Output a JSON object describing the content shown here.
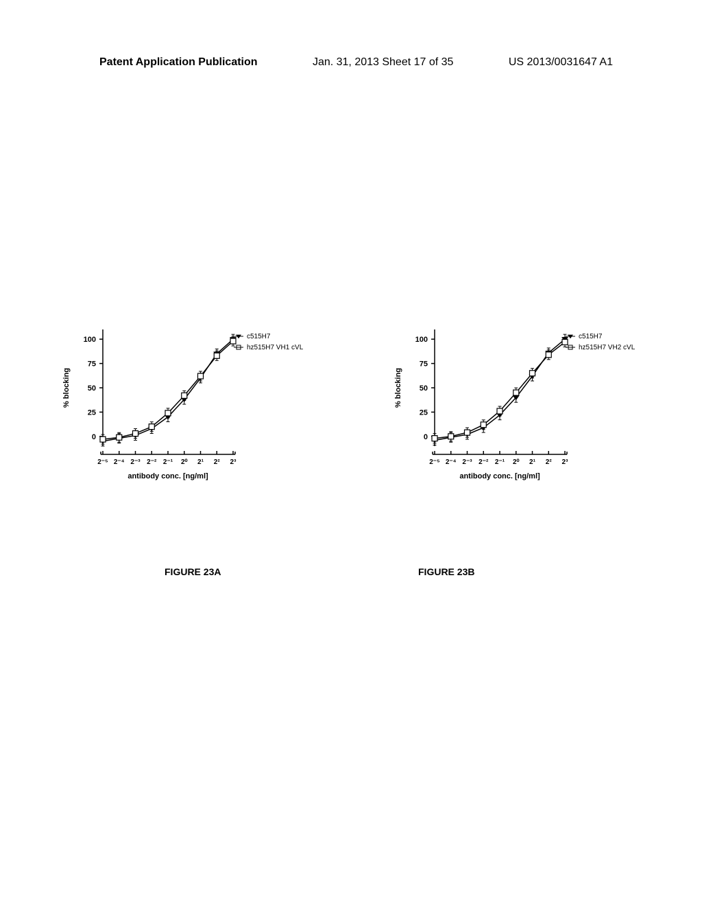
{
  "header": {
    "left": "Patent Application Publication",
    "center": "Jan. 31, 2013  Sheet 17 of 35",
    "right": "US 2013/0031647 A1"
  },
  "chartA": {
    "type": "line",
    "ylabel": "% blocking",
    "xlabel": "antibody conc. [ng/ml]",
    "ylim": [
      -10,
      110
    ],
    "yticks": [
      0,
      25,
      50,
      75,
      100
    ],
    "xtick_labels": [
      "2⁻⁵",
      "2⁻⁴",
      "2⁻³",
      "2⁻²",
      "2⁻¹",
      "2⁰",
      "2¹",
      "2²",
      "2³"
    ],
    "series": [
      {
        "name": "c515H7",
        "marker": "filled-down-triangle",
        "color": "#000000",
        "data": [
          -5,
          -2,
          1,
          8,
          20,
          38,
          60,
          85,
          100
        ]
      },
      {
        "name": "hz515H7 VH1 cVL",
        "marker": "open-square",
        "color": "#000000",
        "data": [
          -3,
          -1,
          3,
          10,
          24,
          42,
          62,
          83,
          98
        ]
      }
    ],
    "figure_label": "FIGURE 23A",
    "label_fontsize": 11,
    "title_fontsize": 11,
    "line_width": 1.5,
    "marker_size": 5
  },
  "chartB": {
    "type": "line",
    "ylabel": "% blocking",
    "xlabel": "antibody conc. [ng/ml]",
    "ylim": [
      -10,
      110
    ],
    "yticks": [
      0,
      25,
      50,
      75,
      100
    ],
    "xtick_labels": [
      "2⁻⁵",
      "2⁻⁴",
      "2⁻³",
      "2⁻²",
      "2⁻¹",
      "2⁰",
      "2¹",
      "2²",
      "2³"
    ],
    "series": [
      {
        "name": "c515H7",
        "marker": "filled-down-triangle",
        "color": "#000000",
        "data": [
          -4,
          -1,
          2,
          9,
          22,
          40,
          62,
          86,
          100
        ]
      },
      {
        "name": "hz515H7 VH2 cVL",
        "marker": "open-square",
        "color": "#000000",
        "data": [
          -2,
          0,
          4,
          12,
          26,
          45,
          65,
          84,
          97
        ]
      }
    ],
    "figure_label": "FIGURE 23B",
    "label_fontsize": 11,
    "title_fontsize": 11,
    "line_width": 1.5,
    "marker_size": 5
  }
}
